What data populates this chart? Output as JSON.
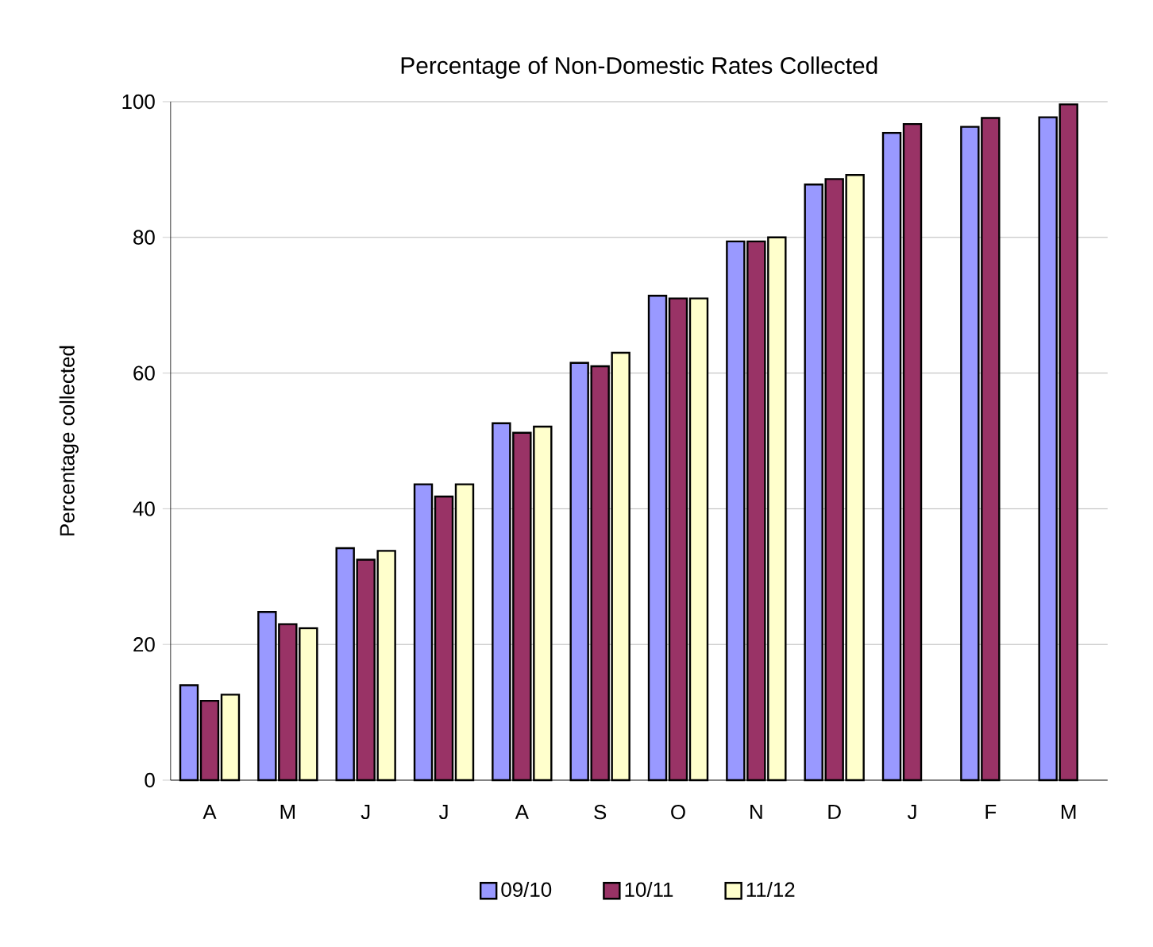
{
  "chart_data": {
    "type": "bar",
    "title": "Percentage of Non-Domestic Rates Collected",
    "ylabel": "Percentage collected",
    "categories": [
      "A",
      "M",
      "J",
      "J",
      "A",
      "S",
      "O",
      "N",
      "D",
      "J",
      "F",
      "M"
    ],
    "series": [
      {
        "name": "09/10",
        "color": "#9999ff",
        "values": [
          14,
          24.8,
          34.2,
          43.6,
          52.6,
          61.5,
          71.4,
          79.4,
          87.8,
          95.4,
          96.3,
          97.7
        ]
      },
      {
        "name": "10/11",
        "color": "#993366",
        "values": [
          11.7,
          23,
          32.5,
          41.8,
          51.2,
          61,
          71,
          79.4,
          88.6,
          96.7,
          97.6,
          99.6
        ]
      },
      {
        "name": "11/12",
        "color": "#ffffcc",
        "values": [
          12.6,
          22.4,
          33.8,
          43.6,
          52.1,
          63,
          71,
          80,
          89.2,
          null,
          null,
          null
        ]
      }
    ],
    "ylim": [
      0,
      100
    ],
    "yticks": [
      0,
      20,
      40,
      60,
      80,
      100
    ],
    "grid": "y",
    "legend": "bottom"
  }
}
